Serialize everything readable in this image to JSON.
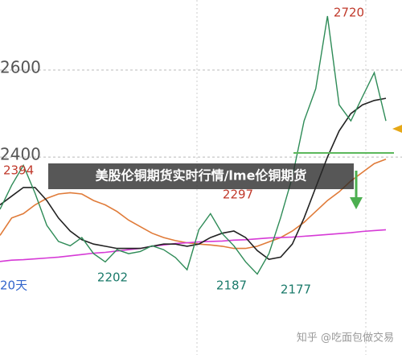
{
  "chart_data": {
    "type": "line",
    "title": "美股伦铜期货实时行情/lme伦铜期货",
    "watermark": "知乎 @吃面包做交易",
    "categories": [
      null,
      null,
      null,
      null,
      null,
      null,
      null,
      null,
      null,
      null,
      null,
      null,
      null,
      null,
      null,
      null,
      null,
      null,
      null,
      null,
      null,
      null,
      null,
      null,
      null,
      null,
      null,
      null,
      null,
      null,
      null,
      null,
      null,
      null
    ],
    "ylim": [
      1945,
      2761
    ],
    "yticks": [
      2400,
      2600
    ],
    "grid": true,
    "series": [
      {
        "color": "#e07b39",
        "values": [
          2220,
          2260,
          2270,
          2290,
          2305,
          2315,
          2318,
          2315,
          2300,
          2290,
          2275,
          2255,
          2240,
          2225,
          2215,
          2208,
          2203,
          2200,
          2198,
          2195,
          2190,
          2190,
          2195,
          2205,
          2215,
          2230,
          2250,
          2275,
          2300,
          2320,
          2345,
          2365,
          2385,
          2395
        ]
      },
      {
        "color": "#d63ad6",
        "values": [
          2160,
          2163,
          2164,
          2166,
          2168,
          2170,
          2173,
          2176,
          2179,
          2181,
          2184,
          2187,
          2190,
          2195,
          2198,
          2201,
          2203,
          2205,
          2206,
          2207,
          2209,
          2210,
          2212,
          2214,
          2215,
          2216,
          2218,
          2220,
          2222,
          2224,
          2226,
          2229,
          2231,
          2233
        ]
      },
      {
        "color": "#222222",
        "values": [
          2290,
          2310,
          2330,
          2330,
          2300,
          2260,
          2230,
          2210,
          2200,
          2195,
          2190,
          2190,
          2190,
          2195,
          2200,
          2200,
          2195,
          2200,
          2215,
          2225,
          2230,
          2215,
          2185,
          2165,
          2170,
          2200,
          2260,
          2330,
          2400,
          2460,
          2500,
          2520,
          2530,
          2535
        ]
      },
      {
        "color": "#2e8b57",
        "values": [
          2280,
          2335,
          2381,
          2317,
          2243,
          2206,
          2196,
          2215,
          2178,
          2159,
          2187,
          2178,
          2183,
          2196,
          2187,
          2169,
          2141,
          2233,
          2270,
          2224,
          2196,
          2159,
          2131,
          2178,
          2261,
          2354,
          2483,
          2557,
          2724,
          2520,
          2483,
          2539,
          2594,
          2483
        ]
      }
    ],
    "annotations": [
      {
        "text": "2720",
        "color": "#c0392b"
      },
      {
        "text": "2394",
        "color": "#c0392b"
      },
      {
        "text": "2297",
        "color": "#c0392b"
      },
      {
        "text": "2202",
        "color": "#1a7a6a"
      },
      {
        "text": "2187",
        "color": "#1a7a6a"
      },
      {
        "text": "2177",
        "color": "#1a7a6a"
      },
      {
        "text": "20天",
        "color": "#3366cc"
      }
    ]
  }
}
